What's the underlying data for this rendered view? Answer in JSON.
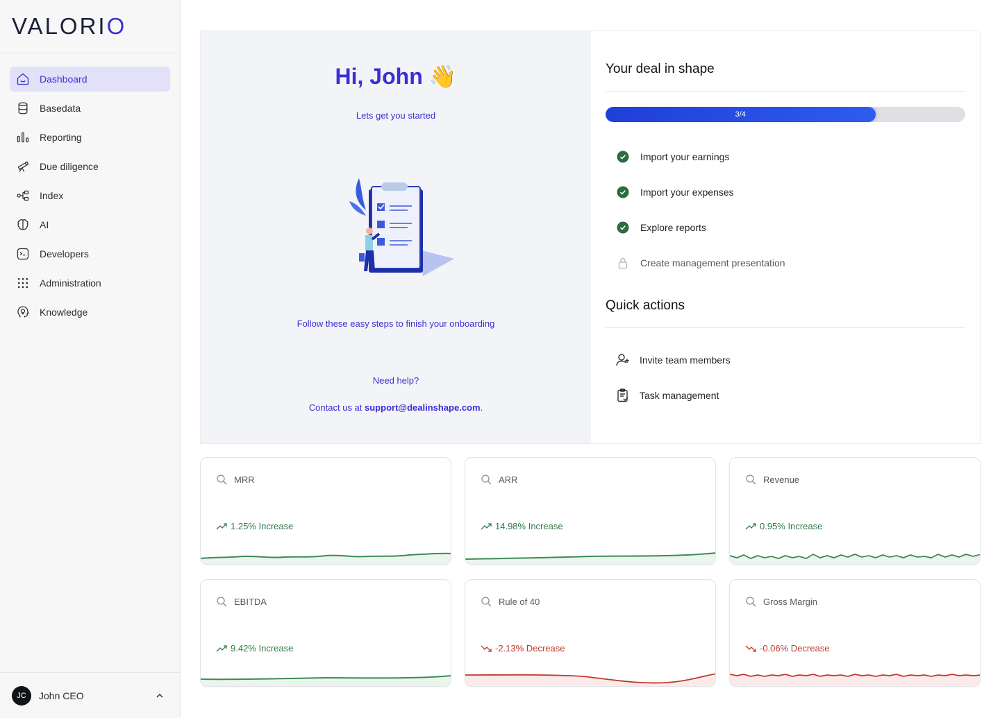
{
  "logo": {
    "part1": "VALORI",
    "part2": "O"
  },
  "sidebar": {
    "items": [
      {
        "label": "Dashboard",
        "icon": "home-icon",
        "active": true
      },
      {
        "label": "Basedata",
        "icon": "database-icon"
      },
      {
        "label": "Reporting",
        "icon": "bar-chart-icon"
      },
      {
        "label": "Due diligence",
        "icon": "telescope-icon"
      },
      {
        "label": "Index",
        "icon": "network-icon"
      },
      {
        "label": "AI",
        "icon": "brain-icon"
      },
      {
        "label": "Developers",
        "icon": "terminal-icon"
      },
      {
        "label": "Administration",
        "icon": "grid-dots-icon"
      },
      {
        "label": "Knowledge",
        "icon": "head-lightbulb-icon"
      }
    ],
    "user": {
      "initials": "JC",
      "name": "John CEO"
    }
  },
  "onboarding": {
    "greeting": "Hi, John 👋",
    "subtitle": "Lets get you started",
    "follow": "Follow these easy steps to finish your onboarding",
    "need_help": "Need help?",
    "contact_prefix": "Contact us at ",
    "contact_email": "support@dealinshape.com",
    "contact_suffix": "."
  },
  "deal": {
    "title": "Your deal in shape",
    "progress_label": "3/4",
    "progress_fraction": 0.75,
    "steps": [
      {
        "label": "Import your earnings",
        "done": true
      },
      {
        "label": "Import your expenses",
        "done": true
      },
      {
        "label": "Explore reports",
        "done": true
      },
      {
        "label": "Create management presentation",
        "done": false
      }
    ]
  },
  "quick_actions": {
    "title": "Quick actions",
    "items": [
      {
        "label": "Invite team members",
        "icon": "user-plus-icon"
      },
      {
        "label": "Task management",
        "icon": "clipboard-check-icon"
      }
    ]
  },
  "metrics": [
    {
      "name": "MRR",
      "change": "1.25% Increase",
      "trend": "up"
    },
    {
      "name": "ARR",
      "change": "14.98% Increase",
      "trend": "up"
    },
    {
      "name": "Revenue",
      "change": "0.95% Increase",
      "trend": "up"
    },
    {
      "name": "EBITDA",
      "change": "9.42% Increase",
      "trend": "up"
    },
    {
      "name": "Rule of 40",
      "change": "-2.13% Decrease",
      "trend": "down"
    },
    {
      "name": "Gross Margin",
      "change": "-0.06% Decrease",
      "trend": "down"
    }
  ],
  "colors": {
    "accent": "#3b2fd6",
    "increase": "#2e7a47",
    "decrease": "#c0392b",
    "progress": "#2e5bf0"
  }
}
